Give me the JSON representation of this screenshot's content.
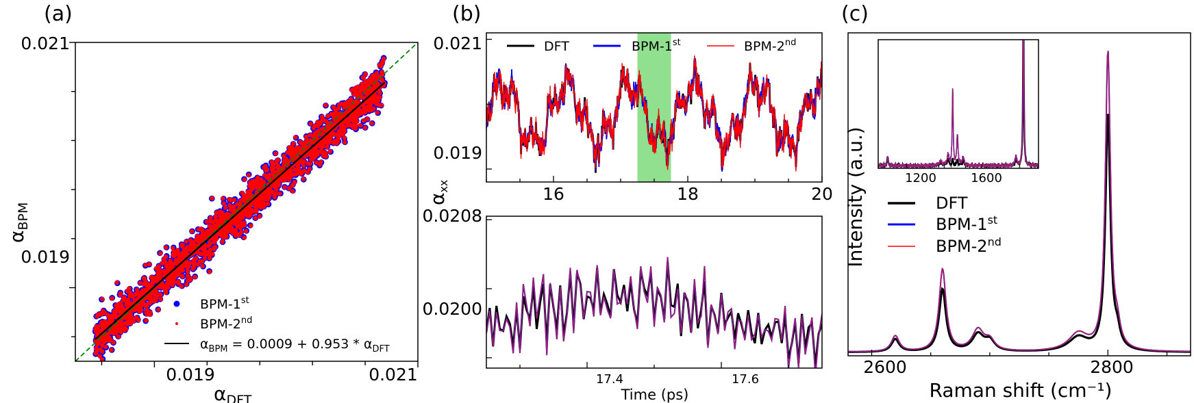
{
  "colors": {
    "dft": "#000000",
    "bpm1": "#0000ff",
    "bpm2": "#ff0000",
    "overlap": "#a0206a",
    "fit": "#000000",
    "diag": "#008000",
    "highlight": "#90e090"
  },
  "chart_data": [
    {
      "panel": "a",
      "type": "scatter",
      "label": "(a)",
      "xlabel": "α_DFT",
      "ylabel": "α_BPM",
      "xlim": [
        0.0184,
        0.021
      ],
      "ylim": [
        0.0184,
        0.021
      ],
      "xticks": [
        "0.019",
        "0.021"
      ],
      "yticks": [
        "0.019",
        "0.021"
      ],
      "legend_placement": "lower-right",
      "series": [
        {
          "name": "BPM-1st",
          "marker": "circle",
          "color": "#0000ff"
        },
        {
          "name": "BPM-2nd",
          "marker": "dot",
          "color": "#ff0000"
        },
        {
          "name": "α_BPM = 0.0009 + 0.953 * α_DFT",
          "marker": "line",
          "color": "#000000"
        }
      ],
      "point_cloud": {
        "x_range": [
          0.01855,
          0.02075
        ],
        "spread": 9e-05
      },
      "fit": {
        "intercept": 0.0009,
        "slope": 0.953
      },
      "diagonal": true,
      "legend_labels": [
        {
          "base": "BPM-1",
          "sup": "st"
        },
        {
          "base": "BPM-2",
          "sup": "nd"
        },
        {
          "a": "α",
          "asub": "BPM",
          "mid": " = 0.0009 + 0.953 * ",
          "b": "α",
          "bsub": "DFT"
        }
      ]
    },
    {
      "panel": "b-top",
      "type": "line",
      "label": "(b)",
      "ylabel": "α_xx",
      "xlim": [
        15,
        20
      ],
      "ylim": [
        0.0188,
        0.0211
      ],
      "xticks": [
        "16",
        "18",
        "20"
      ],
      "yticks": [
        "0.019",
        "0.021"
      ],
      "highlight_x": [
        17.25,
        17.75
      ],
      "legend_placement": "top",
      "legend_labels": [
        {
          "base": "DFT",
          "sup": ""
        },
        {
          "base": "BPM-1",
          "sup": "st"
        },
        {
          "base": "BPM-2",
          "sup": "nd"
        }
      ]
    },
    {
      "panel": "b-bottom",
      "type": "line",
      "xlabel": "Time (ps)",
      "xlim": [
        17.25,
        17.75
      ],
      "ylim": [
        0.01994,
        0.02082
      ],
      "xticks": [
        "17.4",
        "17.6"
      ],
      "yticks": [
        "0.0200",
        "0.0208"
      ]
    },
    {
      "panel": "c",
      "type": "line",
      "label": "(c)",
      "xlabel": "Raman shift (cm⁻¹)",
      "ylabel": "Intensity (a.u.)",
      "xlim": [
        2580,
        2870
      ],
      "xticks": [
        "2600",
        "2800"
      ],
      "peaks_cm1": [
        2620,
        2660,
        2690,
        2780,
        2800
      ],
      "legend_placement": "center-left",
      "legend_labels": [
        {
          "base": "DFT",
          "sup": ""
        },
        {
          "base": "BPM-1",
          "sup": "st"
        },
        {
          "base": "BPM-2",
          "sup": "nd"
        }
      ],
      "inset": {
        "xlim": [
          1050,
          1900
        ],
        "xticks": [
          "1200",
          "1600"
        ],
        "peaks_cm1": [
          1100,
          1460,
          1820
        ]
      }
    }
  ]
}
